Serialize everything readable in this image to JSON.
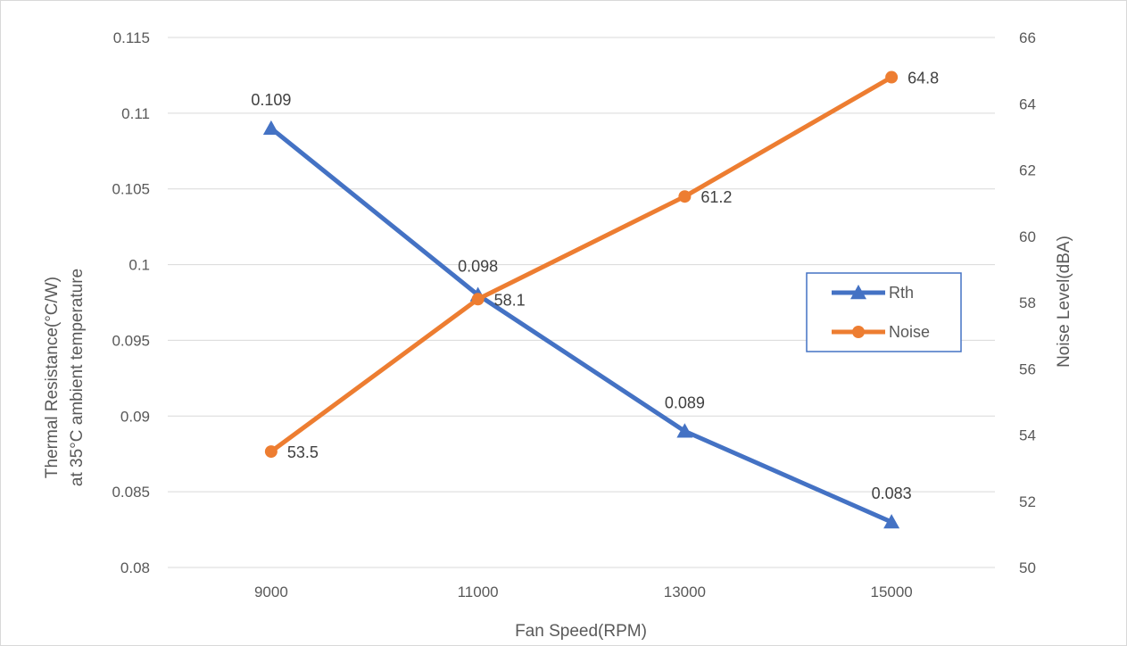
{
  "chart_data": {
    "type": "line",
    "title": "",
    "xlabel": "Fan Speed(RPM)",
    "ylabel_lines": [
      "Thermal Resistance(°C/W)",
      "at 35°C ambient temperature"
    ],
    "y2label": "Noise Level(dBA)",
    "categories": [
      "9000",
      "11000",
      "13000",
      "15000"
    ],
    "ylim": [
      0.08,
      0.115
    ],
    "yticks": [
      "0.08",
      "0.085",
      "0.09",
      "0.095",
      "0.1",
      "0.105",
      "0.11",
      "0.115"
    ],
    "y2lim": [
      50,
      66
    ],
    "y2ticks": [
      "50",
      "52",
      "54",
      "56",
      "58",
      "60",
      "62",
      "64",
      "66"
    ],
    "grid": true,
    "legend_position": "right",
    "series": [
      {
        "name": "Rth",
        "axis": "left",
        "marker": "triangle",
        "color": "#4472c4",
        "values": [
          0.109,
          0.098,
          0.089,
          0.083
        ],
        "labels": [
          "0.109",
          "0.098",
          "0.089",
          "0.083"
        ]
      },
      {
        "name": "Noise",
        "axis": "right",
        "marker": "circle",
        "color": "#ed7d31",
        "values": [
          53.5,
          58.1,
          61.2,
          64.8
        ],
        "labels": [
          "53.5",
          "58.1",
          "61.2",
          "64.8"
        ]
      }
    ]
  }
}
